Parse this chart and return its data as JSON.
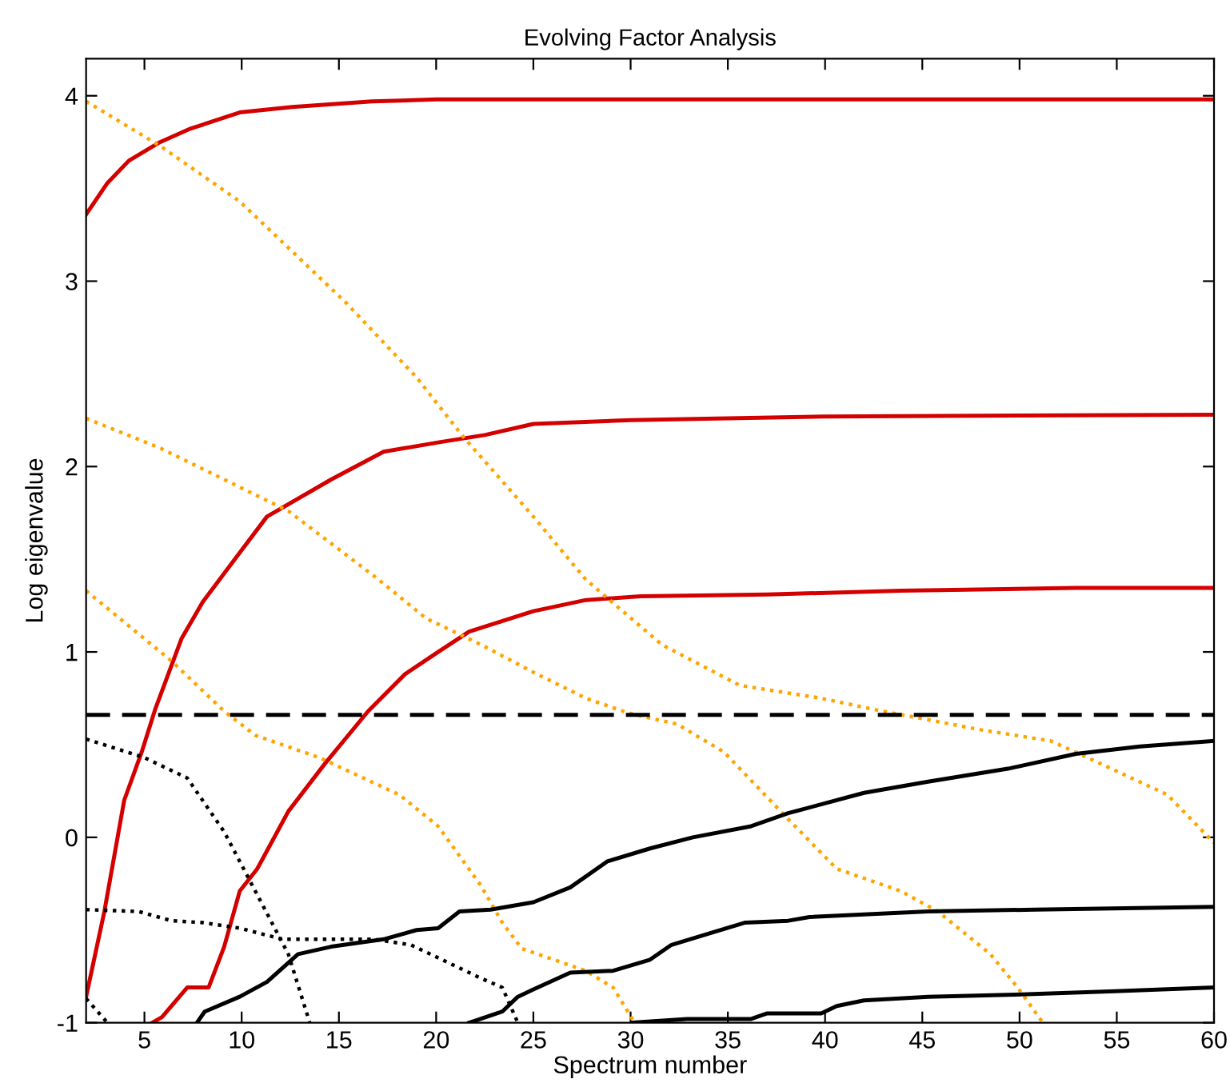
{
  "chart_data": {
    "type": "line",
    "title": "Evolving Factor Analysis",
    "xlabel": "Spectrum number",
    "ylabel": "Log eigenvalue",
    "xlim": [
      2,
      60
    ],
    "xticks": [
      5,
      10,
      15,
      20,
      25,
      30,
      35,
      40,
      45,
      50,
      55,
      60
    ],
    "ylim": [
      -1,
      4.2
    ],
    "yticks": [
      -1,
      0,
      1,
      2,
      3,
      4
    ],
    "grid": false,
    "legend": false,
    "series": [
      {
        "color": "#d40000",
        "line_style": "solid",
        "x": [
          2,
          3.1,
          4.2,
          5.8,
          7.3,
          9.9,
          12.6,
          16.7,
          20,
          30,
          40,
          60
        ],
        "values": [
          3.36,
          3.53,
          3.65,
          3.75,
          3.82,
          3.91,
          3.94,
          3.97,
          3.98,
          3.98,
          3.98,
          3.98
        ]
      },
      {
        "color": "#d40000",
        "line_style": "solid",
        "x": [
          2,
          2.94,
          3.96,
          4.86,
          5.55,
          6.9,
          8,
          9.93,
          11.3,
          14.6,
          17.3,
          20.1,
          22.5,
          25,
          30,
          40,
          60
        ],
        "values": [
          -0.86,
          -0.4,
          0.2,
          0.46,
          0.69,
          1.07,
          1.27,
          1.54,
          1.73,
          1.93,
          2.08,
          2.13,
          2.17,
          2.23,
          2.25,
          2.27,
          2.28
        ]
      },
      {
        "color": "#d40000",
        "line_style": "solid",
        "x": [
          5.4,
          5.9,
          7.2,
          8.3,
          9.1,
          9.9,
          10.8,
          12.4,
          14.3,
          16.5,
          18.4,
          20.1,
          21.7,
          25,
          27.7,
          30.5,
          37,
          43.9,
          52.9,
          60
        ],
        "values": [
          -1,
          -0.97,
          -0.81,
          -0.81,
          -0.59,
          -0.29,
          -0.17,
          0.14,
          0.4,
          0.68,
          0.88,
          1.0,
          1.11,
          1.22,
          1.28,
          1.3,
          1.31,
          1.33,
          1.345,
          1.345
        ]
      },
      {
        "color": "#ffa500",
        "line_style": "dotted",
        "x": [
          2,
          5.8,
          9.9,
          15.4,
          19,
          21.4,
          25,
          27.7,
          28.7,
          31.6,
          35.6,
          39.8,
          42.5,
          48,
          51.6,
          53.5,
          57.6,
          60
        ],
        "values": [
          3.97,
          3.73,
          3.43,
          2.88,
          2.48,
          2.16,
          1.73,
          1.39,
          1.3,
          1.04,
          0.82,
          0.75,
          0.69,
          0.58,
          0.52,
          0.43,
          0.23,
          -0.03
        ]
      },
      {
        "color": "#ffa500",
        "line_style": "dotted",
        "x": [
          2,
          5.8,
          12.4,
          16.8,
          19.5,
          22.3,
          25,
          27.7,
          29.9,
          32.4,
          34.8,
          37.9,
          40.6,
          43.9,
          45.8,
          48.5,
          49.9,
          51.2
        ],
        "values": [
          2.26,
          2.1,
          1.76,
          1.41,
          1.18,
          1.04,
          0.89,
          0.75,
          0.67,
          0.61,
          0.46,
          0.12,
          -0.17,
          -0.29,
          -0.4,
          -0.63,
          -0.81,
          -1
        ]
      },
      {
        "color": "#ffa500",
        "line_style": "dotted",
        "x": [
          2,
          6.4,
          9.1,
          10.7,
          14,
          18.1,
          20.1,
          22.3,
          23.4,
          24.4,
          27.7,
          29.1,
          30.2
        ],
        "values": [
          1.33,
          0.95,
          0.68,
          0.55,
          0.43,
          0.23,
          0.06,
          -0.26,
          -0.46,
          -0.6,
          -0.72,
          -0.81,
          -1
        ]
      },
      {
        "color": "#000000",
        "line_style": "dotted",
        "x": [
          2,
          5,
          7.2,
          9.1,
          10.7,
          12.4,
          13.5
        ],
        "values": [
          0.53,
          0.43,
          0.32,
          0.03,
          -0.29,
          -0.63,
          -1
        ]
      },
      {
        "color": "#000000",
        "line_style": "dotted",
        "x": [
          2,
          4.7,
          6.4,
          8,
          9.9,
          12.1,
          16.8,
          18.7,
          20.9,
          22.3,
          23.4,
          24.2
        ],
        "values": [
          -0.39,
          -0.4,
          -0.45,
          -0.46,
          -0.49,
          -0.55,
          -0.55,
          -0.58,
          -0.69,
          -0.76,
          -0.81,
          -1
        ]
      },
      {
        "color": "#000000",
        "line_style": "dotted",
        "x": [
          2,
          3.1
        ],
        "values": [
          -0.87,
          -1
        ]
      },
      {
        "color": "#000000",
        "line_style": "solid",
        "x": [
          7.7,
          8.1,
          9.9,
          11.3,
          12.9,
          14.6,
          17.3,
          19,
          20.1,
          21.2,
          22.8,
          25,
          26.9,
          28.8,
          31,
          33.2,
          36.2,
          38.1,
          42,
          45.3,
          49.4,
          52.9,
          56.2,
          60
        ],
        "values": [
          -1,
          -0.94,
          -0.86,
          -0.78,
          -0.63,
          -0.59,
          -0.55,
          -0.5,
          -0.49,
          -0.4,
          -0.39,
          -0.35,
          -0.27,
          -0.13,
          -0.06,
          0,
          0.06,
          0.13,
          0.24,
          0.3,
          0.37,
          0.45,
          0.49,
          0.52
        ]
      },
      {
        "color": "#000000",
        "line_style": "solid",
        "x": [
          21.7,
          23.4,
          24.2,
          25,
          26.9,
          29.1,
          31,
          32.1,
          34.3,
          35.9,
          38.1,
          39.2,
          45.3,
          50.8,
          60
        ],
        "values": [
          -1,
          -0.94,
          -0.86,
          -0.82,
          -0.73,
          -0.72,
          -0.66,
          -0.58,
          -0.51,
          -0.46,
          -0.45,
          -0.43,
          -0.4,
          -0.39,
          -0.375
        ]
      },
      {
        "color": "#000000",
        "line_style": "solid",
        "x": [
          30.1,
          32.9,
          36.2,
          37,
          39.8,
          40.6,
          42,
          45.3,
          49.4,
          54.9,
          60
        ],
        "values": [
          -1,
          -0.98,
          -0.98,
          -0.95,
          -0.95,
          -0.91,
          -0.88,
          -0.86,
          -0.85,
          -0.83,
          -0.81
        ]
      }
    ],
    "ref_lines": [
      {
        "axis": "y",
        "value": 0.66,
        "color": "#000000",
        "line_style": "dashed"
      }
    ]
  }
}
